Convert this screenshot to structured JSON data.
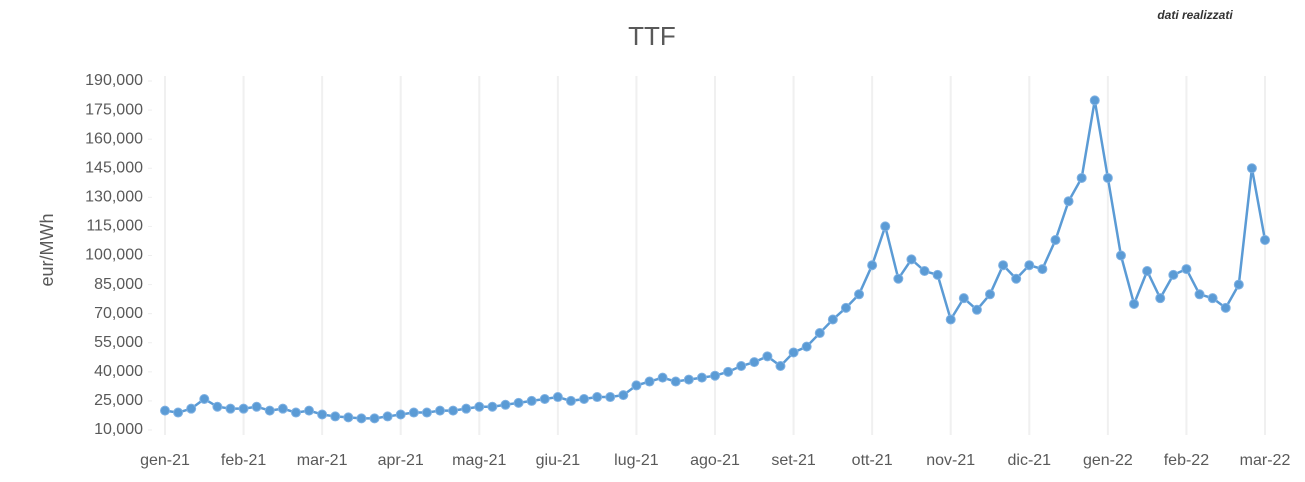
{
  "chart_data": {
    "type": "line",
    "title": "TTF",
    "annotation": "dati realizzati",
    "ylabel": "eur/MWh",
    "categories": [
      "gen-21",
      null,
      null,
      null,
      null,
      null,
      "feb-21",
      null,
      null,
      null,
      null,
      null,
      "mar-21",
      null,
      null,
      null,
      null,
      null,
      "apr-21",
      null,
      null,
      null,
      null,
      null,
      "mag-21",
      null,
      null,
      null,
      null,
      null,
      "giu-21",
      null,
      null,
      null,
      null,
      null,
      "lug-21",
      null,
      null,
      null,
      null,
      null,
      "ago-21",
      null,
      null,
      null,
      null,
      null,
      "set-21",
      null,
      null,
      null,
      null,
      null,
      "ott-21",
      null,
      null,
      null,
      null,
      null,
      "nov-21",
      null,
      null,
      null,
      null,
      null,
      "dic-21",
      null,
      null,
      null,
      null,
      null,
      "gen-22",
      null,
      null,
      null,
      null,
      null,
      "feb-22",
      null,
      null,
      null,
      null,
      null,
      "mar-22"
    ],
    "series": [
      {
        "name": "TTF",
        "color": "#5b9bd5",
        "values": [
          20000,
          19000,
          21000,
          26000,
          22000,
          21000,
          21000,
          22000,
          20000,
          21000,
          19000,
          20000,
          18000,
          17000,
          16500,
          16000,
          16000,
          17000,
          18000,
          19000,
          19000,
          20000,
          20000,
          21000,
          22000,
          22000,
          23000,
          24000,
          25000,
          26000,
          27000,
          25000,
          26000,
          27000,
          27000,
          28000,
          33000,
          35000,
          37000,
          35000,
          36000,
          37000,
          38000,
          40000,
          43000,
          45000,
          48000,
          43000,
          50000,
          53000,
          60000,
          67000,
          73000,
          80000,
          95000,
          115000,
          88000,
          98000,
          92000,
          90000,
          67000,
          78000,
          72000,
          80000,
          95000,
          88000,
          95000,
          93000,
          108000,
          128000,
          140000,
          180000,
          140000,
          100000,
          75000,
          92000,
          78000,
          90000,
          93000,
          80000,
          78000,
          73000,
          85000,
          145000,
          108000
        ]
      }
    ],
    "ylim": [
      10000,
      190000
    ],
    "yticks": [
      {
        "value": 10000,
        "label": "10,000"
      },
      {
        "value": 25000,
        "label": "25,000"
      },
      {
        "value": 40000,
        "label": "40,000"
      },
      {
        "value": 55000,
        "label": "55,000"
      },
      {
        "value": 70000,
        "label": "70,000"
      },
      {
        "value": 85000,
        "label": "85,000"
      },
      {
        "value": 100000,
        "label": "100,000"
      },
      {
        "value": 115000,
        "label": "115,000"
      },
      {
        "value": 130000,
        "label": "130,000"
      },
      {
        "value": 145000,
        "label": "145,000"
      },
      {
        "value": 160000,
        "label": "160,000"
      },
      {
        "value": 175000,
        "label": "175,000"
      },
      {
        "value": 190000,
        "label": "190,000"
      }
    ],
    "grid": true
  }
}
